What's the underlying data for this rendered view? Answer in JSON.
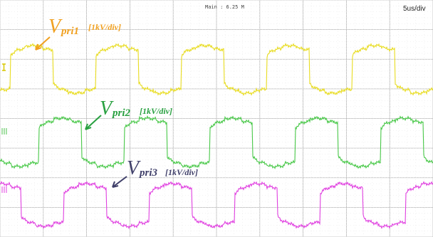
{
  "header": {
    "timebase_info": "Main : 6.25 M",
    "time_per_div": "5us/div"
  },
  "traces": [
    {
      "symbol": "V",
      "subscript": "pri1",
      "scale": "[1kV/div]"
    },
    {
      "symbol": "V",
      "subscript": "pri2",
      "scale": "[1kV/div]"
    },
    {
      "symbol": "V",
      "subscript": "pri3",
      "scale": "[1kV/div]"
    }
  ]
}
